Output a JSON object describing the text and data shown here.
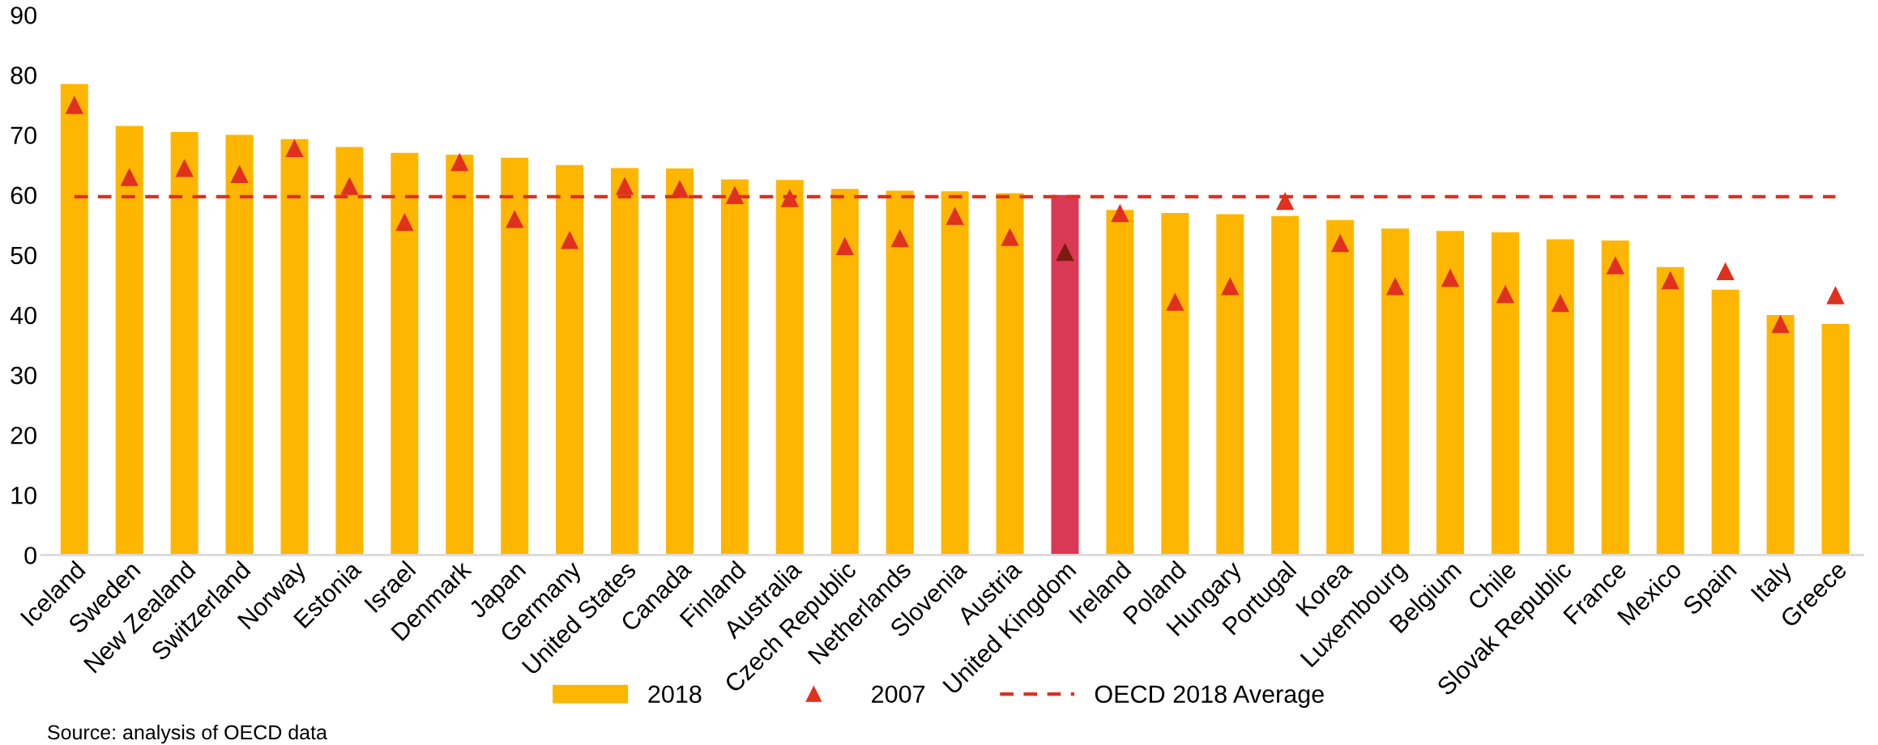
{
  "chart_data": {
    "type": "bar",
    "categories": [
      "Iceland",
      "Sweden",
      "New Zealand",
      "Switzerland",
      "Norway",
      "Estonia",
      "Israel",
      "Denmark",
      "Japan",
      "Germany",
      "United States",
      "Canada",
      "Finland",
      "Australia",
      "Czech Republic",
      "Netherlands",
      "Slovenia",
      "Austria",
      "United Kingdom",
      "Ireland",
      "Poland",
      "Hungary",
      "Portugal",
      "Korea",
      "Luxembourg",
      "Belgium",
      "Chile",
      "Slovak Republic",
      "France",
      "Mexico",
      "Spain",
      "Italy",
      "Greece"
    ],
    "series": [
      {
        "name": "2018",
        "color": "#ffb600",
        "colors": [
          "#ffb600",
          "#ffb600",
          "#ffb600",
          "#ffb600",
          "#ffb600",
          "#ffb600",
          "#ffb600",
          "#ffb600",
          "#ffb600",
          "#ffb600",
          "#ffb600",
          "#ffb600",
          "#ffb600",
          "#ffb600",
          "#ffb600",
          "#ffb600",
          "#ffb600",
          "#ffb600",
          "#d93954",
          "#ffb600",
          "#ffb600",
          "#ffb600",
          "#ffb600",
          "#ffb600",
          "#ffb600",
          "#ffb600",
          "#ffb600",
          "#ffb600",
          "#ffb600",
          "#ffb600",
          "#ffb600",
          "#ffb600",
          "#ffb600"
        ],
        "values": [
          78.5,
          71.5,
          70.5,
          70,
          69.3,
          68,
          67,
          66.7,
          66.2,
          65,
          64.5,
          64.4,
          62.6,
          62.5,
          61,
          60.7,
          60.6,
          60.3,
          60,
          57.5,
          57,
          56.8,
          56.5,
          55.8,
          54.4,
          54,
          53.8,
          52.6,
          52.4,
          48,
          44.2,
          40,
          38.5
        ]
      },
      {
        "name": "2007",
        "type": "scatter",
        "marker": "triangle",
        "color": "#e0301e",
        "colors": [
          "#e0301e",
          "#e0301e",
          "#e0301e",
          "#e0301e",
          "#e0301e",
          "#e0301e",
          "#e0301e",
          "#e0301e",
          "#e0301e",
          "#e0301e",
          "#e0301e",
          "#e0301e",
          "#e0301e",
          "#e0301e",
          "#e0301e",
          "#e0301e",
          "#e0301e",
          "#e0301e",
          "#7d1a12",
          "#e0301e",
          "#e0301e",
          "#e0301e",
          "#e0301e",
          "#e0301e",
          "#e0301e",
          "#e0301e",
          "#e0301e",
          "#e0301e",
          "#e0301e",
          "#e0301e",
          "#e0301e",
          "#e0301e",
          "#e0301e"
        ],
        "values": [
          75,
          63,
          64.5,
          63.5,
          67.8,
          61.5,
          55.5,
          65.5,
          56,
          52.5,
          61.5,
          61,
          60,
          59.5,
          51.5,
          52.8,
          56.5,
          53,
          50.5,
          57,
          42.2,
          44.8,
          59,
          52,
          44.8,
          46.2,
          43.5,
          42,
          48.3,
          45.8,
          47.3,
          38.5,
          43.3
        ]
      }
    ],
    "ref_lines": [
      {
        "axis": "y",
        "value": 59.7,
        "label": "OECD 2018 Average",
        "color": "#e0301e",
        "line_style": "dashed"
      }
    ],
    "ylim": [
      0,
      90
    ],
    "yticks": [
      0,
      10,
      20,
      30,
      40,
      50,
      60,
      70,
      80,
      90
    ],
    "grid": false,
    "legend": "bottom",
    "annotations": [
      "Source: analysis of OECD data"
    ]
  }
}
